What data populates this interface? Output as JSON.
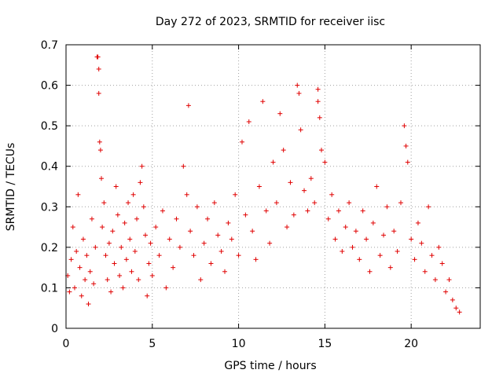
{
  "chart_data": {
    "type": "scatter",
    "title": "Day 272 of 2023, SRMTID for receiver iisc",
    "xlabel": "GPS time / hours",
    "ylabel": "SRMTID / TECUs",
    "xlim": [
      0,
      24
    ],
    "ylim": [
      0,
      0.7
    ],
    "x_ticks": [
      0,
      5,
      10,
      15,
      20
    ],
    "x_tick_labels": [
      "0",
      "5",
      "10",
      "15",
      "20"
    ],
    "y_ticks": [
      0,
      0.1,
      0.2,
      0.3,
      0.4,
      0.5,
      0.6,
      0.7
    ],
    "y_tick_labels": [
      "0",
      "0.1",
      "0.2",
      "0.3",
      "0.4",
      "0.5",
      "0.6",
      "0.7"
    ],
    "grid": true,
    "marker": "+",
    "series": [
      {
        "name": "SRMTID",
        "color": "#e00000",
        "points": [
          [
            0.1,
            0.13
          ],
          [
            0.2,
            0.09
          ],
          [
            0.3,
            0.17
          ],
          [
            0.4,
            0.25
          ],
          [
            0.5,
            0.1
          ],
          [
            0.6,
            0.19
          ],
          [
            0.7,
            0.33
          ],
          [
            0.8,
            0.15
          ],
          [
            0.9,
            0.08
          ],
          [
            1.0,
            0.22
          ],
          [
            1.1,
            0.12
          ],
          [
            1.2,
            0.18
          ],
          [
            1.3,
            0.06
          ],
          [
            1.4,
            0.14
          ],
          [
            1.5,
            0.27
          ],
          [
            1.6,
            0.11
          ],
          [
            1.7,
            0.2
          ],
          [
            1.8,
            0.67
          ],
          [
            1.85,
            0.67
          ],
          [
            1.9,
            0.64
          ],
          [
            1.9,
            0.58
          ],
          [
            1.95,
            0.46
          ],
          [
            2.0,
            0.44
          ],
          [
            2.05,
            0.37
          ],
          [
            2.1,
            0.25
          ],
          [
            2.2,
            0.31
          ],
          [
            2.3,
            0.18
          ],
          [
            2.4,
            0.12
          ],
          [
            2.5,
            0.21
          ],
          [
            2.6,
            0.09
          ],
          [
            2.7,
            0.24
          ],
          [
            2.8,
            0.16
          ],
          [
            2.9,
            0.35
          ],
          [
            3.0,
            0.28
          ],
          [
            3.1,
            0.13
          ],
          [
            3.2,
            0.2
          ],
          [
            3.3,
            0.1
          ],
          [
            3.4,
            0.26
          ],
          [
            3.5,
            0.17
          ],
          [
            3.6,
            0.31
          ],
          [
            3.7,
            0.22
          ],
          [
            3.8,
            0.14
          ],
          [
            3.9,
            0.33
          ],
          [
            4.0,
            0.19
          ],
          [
            4.1,
            0.27
          ],
          [
            4.2,
            0.12
          ],
          [
            4.3,
            0.36
          ],
          [
            4.4,
            0.4
          ],
          [
            4.5,
            0.3
          ],
          [
            4.6,
            0.23
          ],
          [
            4.7,
            0.08
          ],
          [
            4.8,
            0.16
          ],
          [
            4.9,
            0.21
          ],
          [
            5.0,
            0.13
          ],
          [
            5.2,
            0.25
          ],
          [
            5.4,
            0.18
          ],
          [
            5.6,
            0.29
          ],
          [
            5.8,
            0.1
          ],
          [
            6.0,
            0.22
          ],
          [
            6.2,
            0.15
          ],
          [
            6.4,
            0.27
          ],
          [
            6.6,
            0.2
          ],
          [
            6.8,
            0.4
          ],
          [
            7.0,
            0.33
          ],
          [
            7.1,
            0.55
          ],
          [
            7.2,
            0.24
          ],
          [
            7.4,
            0.18
          ],
          [
            7.6,
            0.3
          ],
          [
            7.8,
            0.12
          ],
          [
            8.0,
            0.21
          ],
          [
            8.2,
            0.27
          ],
          [
            8.4,
            0.16
          ],
          [
            8.6,
            0.31
          ],
          [
            8.8,
            0.23
          ],
          [
            9.0,
            0.19
          ],
          [
            9.2,
            0.14
          ],
          [
            9.4,
            0.26
          ],
          [
            9.6,
            0.22
          ],
          [
            9.8,
            0.33
          ],
          [
            10.0,
            0.18
          ],
          [
            10.2,
            0.46
          ],
          [
            10.4,
            0.28
          ],
          [
            10.6,
            0.51
          ],
          [
            10.8,
            0.24
          ],
          [
            11.0,
            0.17
          ],
          [
            11.2,
            0.35
          ],
          [
            11.4,
            0.56
          ],
          [
            11.6,
            0.29
          ],
          [
            11.8,
            0.21
          ],
          [
            12.0,
            0.41
          ],
          [
            12.2,
            0.31
          ],
          [
            12.4,
            0.53
          ],
          [
            12.6,
            0.44
          ],
          [
            12.8,
            0.25
          ],
          [
            13.0,
            0.36
          ],
          [
            13.2,
            0.28
          ],
          [
            13.4,
            0.6
          ],
          [
            13.5,
            0.58
          ],
          [
            13.6,
            0.49
          ],
          [
            13.8,
            0.34
          ],
          [
            14.0,
            0.29
          ],
          [
            14.2,
            0.37
          ],
          [
            14.4,
            0.31
          ],
          [
            14.6,
            0.59
          ],
          [
            14.6,
            0.56
          ],
          [
            14.7,
            0.52
          ],
          [
            14.8,
            0.44
          ],
          [
            15.0,
            0.41
          ],
          [
            15.2,
            0.27
          ],
          [
            15.4,
            0.33
          ],
          [
            15.6,
            0.22
          ],
          [
            15.8,
            0.29
          ],
          [
            16.0,
            0.19
          ],
          [
            16.2,
            0.25
          ],
          [
            16.4,
            0.31
          ],
          [
            16.6,
            0.2
          ],
          [
            16.8,
            0.24
          ],
          [
            17.0,
            0.17
          ],
          [
            17.2,
            0.29
          ],
          [
            17.4,
            0.22
          ],
          [
            17.6,
            0.14
          ],
          [
            17.8,
            0.26
          ],
          [
            18.0,
            0.35
          ],
          [
            18.2,
            0.18
          ],
          [
            18.4,
            0.23
          ],
          [
            18.6,
            0.3
          ],
          [
            18.8,
            0.15
          ],
          [
            19.0,
            0.24
          ],
          [
            19.2,
            0.19
          ],
          [
            19.4,
            0.31
          ],
          [
            19.6,
            0.5
          ],
          [
            19.7,
            0.45
          ],
          [
            19.8,
            0.41
          ],
          [
            20.0,
            0.22
          ],
          [
            20.2,
            0.17
          ],
          [
            20.4,
            0.26
          ],
          [
            20.6,
            0.21
          ],
          [
            20.8,
            0.14
          ],
          [
            21.0,
            0.3
          ],
          [
            21.2,
            0.18
          ],
          [
            21.4,
            0.12
          ],
          [
            21.6,
            0.2
          ],
          [
            21.8,
            0.16
          ],
          [
            22.0,
            0.09
          ],
          [
            22.2,
            0.12
          ],
          [
            22.4,
            0.07
          ],
          [
            22.6,
            0.05
          ],
          [
            22.8,
            0.04
          ]
        ]
      }
    ]
  }
}
